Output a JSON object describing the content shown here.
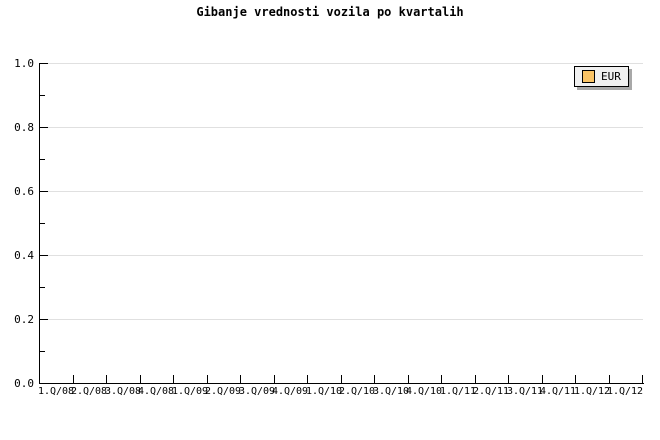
{
  "chart_data": {
    "type": "line",
    "title": "Gibanje vrednosti vozila po kvartalih",
    "xlabel": "",
    "ylabel": "",
    "categories": [
      "1.Q/08",
      "2.Q/08",
      "3.Q/08",
      "4.Q/08",
      "1.Q/09",
      "2.Q/09",
      "3.Q/09",
      "4.Q/09",
      "1.Q/10",
      "2.Q/10",
      "3.Q/10",
      "4.Q/10",
      "1.Q/11",
      "2.Q/11",
      "3.Q/11",
      "4.Q/11",
      "1.Q/12",
      "1.Q/12"
    ],
    "series": [
      {
        "name": "EUR",
        "color": "#fac466",
        "values": []
      }
    ],
    "ylim": [
      0.0,
      1.0
    ],
    "y_ticks": [
      {
        "value": 0.0,
        "label": "0.0"
      },
      {
        "value": 0.2,
        "label": "0.2"
      },
      {
        "value": 0.4,
        "label": "0.4"
      },
      {
        "value": 0.6,
        "label": "0.6"
      },
      {
        "value": 0.8,
        "label": "0.8"
      },
      {
        "value": 1.0,
        "label": "1.0"
      }
    ],
    "y_minor_ticks": [
      0.1,
      0.3,
      0.5,
      0.7,
      0.9
    ],
    "grid": "horizontal-major",
    "legend_position": "top-right"
  },
  "legend": {
    "label": "EUR",
    "swatch_color": "#fac466"
  },
  "colors": {
    "background": "#ffffff",
    "axis": "#000000",
    "grid": "#e0e0e0",
    "text": "#000000",
    "legend_bg": "#f0f0f0",
    "legend_shadow": "#a8a8a8"
  }
}
